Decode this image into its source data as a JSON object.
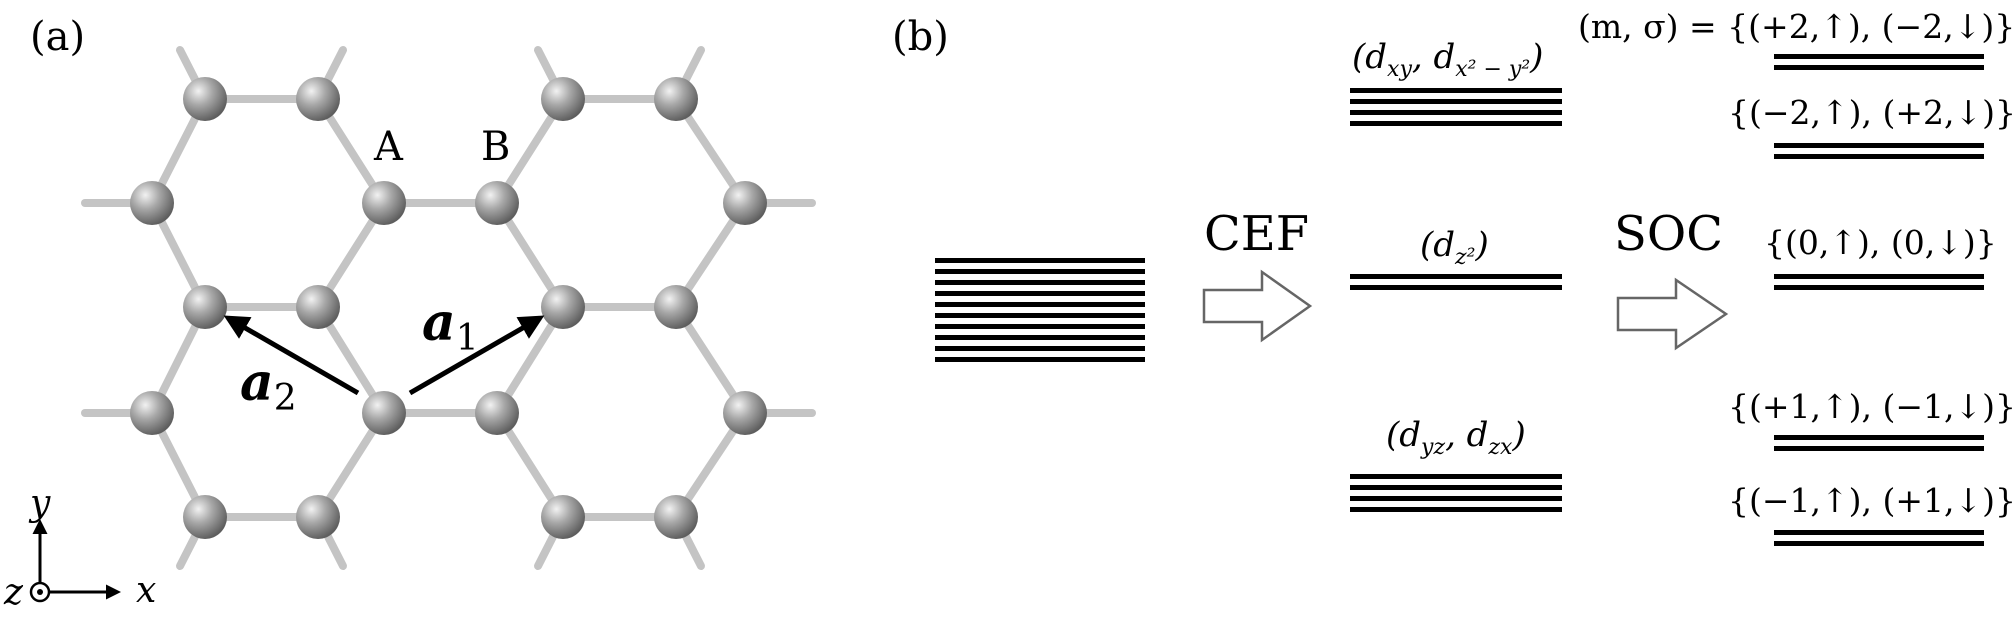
{
  "panel_a": {
    "label": "(a)",
    "site_a": "A",
    "site_b": "B",
    "vec_a1": "a",
    "vec_a1_sub": "1",
    "vec_a2": "a",
    "vec_a2_sub": "2",
    "axis_y": "y",
    "axis_x": "x",
    "axis_z": "z"
  },
  "panel_b": {
    "label": "(b)",
    "cef": "CEF",
    "soc": "SOC",
    "orb_xy": "(d",
    "orb_xy_sub": "xy",
    "orb_xy_mid": ", d",
    "orb_xy_sub2": "x² − y²",
    "orb_xy_end": ")",
    "orb_z2": "(d",
    "orb_z2_sub": "z²",
    "orb_z2_end": ")",
    "orb_yz": "(d",
    "orb_yz_sub": "yz",
    "orb_yz_mid": ", d",
    "orb_yz_sub2": "zx",
    "orb_yz_end": ")",
    "header": "(m, σ) = {(+2,↑), (−2,↓)}",
    "state_m2": "{(−2,↑), (+2,↓)}",
    "state_0": "{(0,↑), (0,↓)}",
    "state_p1": "{(+1,↑), (−1,↓)}",
    "state_m1": "{(−1,↑), (+1,↓)}"
  }
}
